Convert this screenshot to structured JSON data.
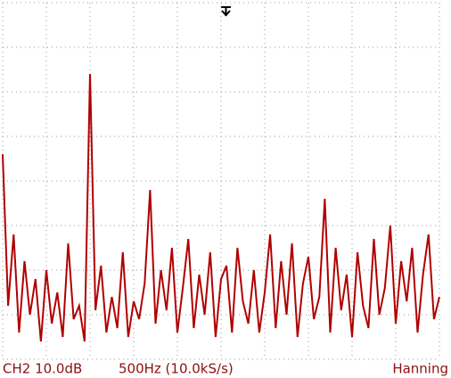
{
  "chart_data": {
    "type": "line",
    "channel": "CH2 10.0dB",
    "scale": "500Hz (10.0kS/s)",
    "window": "Hanning",
    "xlim": [
      0,
      10
    ],
    "ylim": [
      0,
      8
    ],
    "xticks": [
      0,
      1,
      2,
      3,
      4,
      5,
      6,
      7,
      8,
      9,
      10
    ],
    "yticks": [
      0,
      1,
      2,
      3,
      4,
      5,
      6,
      7,
      8
    ],
    "grid": true,
    "x": [
      0,
      0.125,
      0.25,
      0.375,
      0.5,
      0.625,
      0.75,
      0.875,
      1,
      1.125,
      1.25,
      1.375,
      1.5,
      1.625,
      1.75,
      1.875,
      2,
      2.125,
      2.25,
      2.375,
      2.5,
      2.625,
      2.75,
      2.875,
      3,
      3.125,
      3.25,
      3.375,
      3.5,
      3.625,
      3.75,
      3.875,
      4,
      4.125,
      4.25,
      4.375,
      4.5,
      4.625,
      4.75,
      4.875,
      5,
      5.125,
      5.25,
      5.375,
      5.5,
      5.625,
      5.75,
      5.875,
      6,
      6.125,
      6.25,
      6.375,
      6.5,
      6.625,
      6.75,
      6.875,
      7,
      7.125,
      7.25,
      7.375,
      7.5,
      7.625,
      7.75,
      7.875,
      8,
      8.125,
      8.25,
      8.375,
      8.5,
      8.625,
      8.75,
      8.875,
      9,
      9.125,
      9.25,
      9.375,
      9.5,
      9.625,
      9.75,
      9.875,
      10
    ],
    "series": [
      {
        "color": "#b00000",
        "values": [
          4.6,
          1.2,
          2.8,
          0.6,
          2.2,
          1.0,
          1.8,
          0.4,
          2.0,
          0.8,
          1.5,
          0.5,
          2.6,
          0.9,
          1.2,
          0.4,
          6.4,
          1.1,
          2.1,
          0.6,
          1.4,
          0.7,
          2.4,
          0.5,
          1.3,
          0.9,
          1.7,
          3.8,
          0.8,
          2.0,
          1.1,
          2.5,
          0.6,
          1.6,
          2.7,
          0.7,
          1.9,
          1.0,
          2.4,
          0.5,
          1.8,
          2.1,
          0.6,
          2.5,
          1.3,
          0.8,
          2.0,
          0.6,
          1.5,
          2.8,
          0.7,
          2.2,
          1.0,
          2.6,
          0.5,
          1.7,
          2.3,
          0.9,
          1.4,
          3.6,
          0.6,
          2.5,
          1.1,
          1.9,
          0.5,
          2.4,
          1.2,
          0.7,
          2.7,
          1.0,
          1.6,
          3.0,
          0.8,
          2.2,
          1.3,
          2.5,
          0.6,
          1.9,
          2.8,
          0.9,
          1.4
        ]
      }
    ]
  }
}
